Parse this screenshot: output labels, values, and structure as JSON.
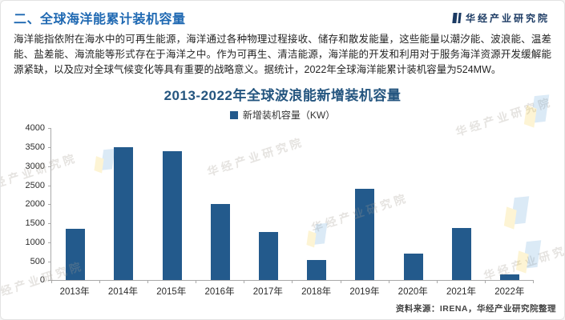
{
  "header": {
    "title": "二、全球海洋能累计装机容量",
    "brand": "华经产业研究院"
  },
  "intro": {
    "text": "海洋能指依附在海水中的可再生能源，海洋通过各种物理过程接收、储存和散发能量，这些能量以潮汐能、波浪能、温差能、盐差能、海流能等形式存在于海洋之中。作为可再生、清洁能源，海洋能的开发和利用对于服务海洋资源开发缓解能源紧缺，以及应对全球气候变化等具有重要的战略意义。据统计，2022年全球海洋能累计装机容量为524MW。"
  },
  "chart_data": {
    "type": "bar",
    "title": "2013-2022年全球波浪能新增装机容量",
    "legend": "新增装机容量（KW）",
    "categories": [
      "2013年",
      "2014年",
      "2015年",
      "2016年",
      "2017年",
      "2018年",
      "2019年",
      "2020年",
      "2021年",
      "2022年"
    ],
    "values": [
      1350,
      3500,
      3400,
      2000,
      1270,
      530,
      2400,
      700,
      1380,
      160
    ],
    "ylabel": "",
    "xlabel": "",
    "ylim": [
      0,
      4000
    ],
    "y_ticks": [
      4000,
      3500,
      3000,
      2500,
      2000,
      1500,
      1000,
      500,
      0
    ],
    "bar_color": "#235a8c",
    "legend_position": "top",
    "grid": false
  },
  "footer": {
    "source": "资料来源：IRENA，华经产业研究院整理"
  },
  "watermark": {
    "text": "华经产业研究院"
  },
  "colors": {
    "page_title": "#1e68b2",
    "chart_title": "#24557f",
    "bar": "#235a8c",
    "brand": "#1b3a63"
  }
}
